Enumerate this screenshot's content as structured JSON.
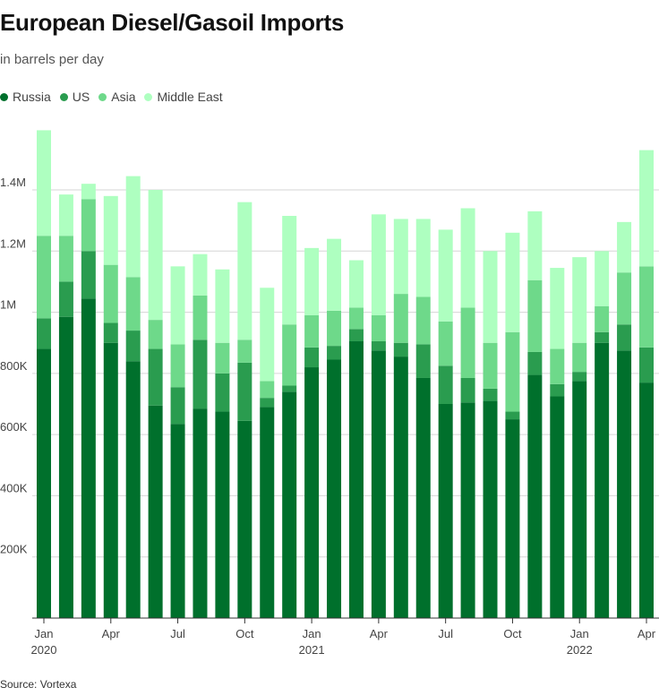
{
  "title": "European Diesel/Gasoil Imports",
  "subtitle": "in barrels per day",
  "source": "Source: Vortexa",
  "colors": {
    "Russia": "#00702c",
    "US": "#2a9c4f",
    "Asia": "#6ed98a",
    "Middle East": "#aeffc0",
    "grid": "#d6d6d6",
    "axis": "#333333"
  },
  "chart_data": {
    "type": "bar",
    "stacked": true,
    "categories": [
      "Jan 2020",
      "Feb 2020",
      "Mar 2020",
      "Apr 2020",
      "May 2020",
      "Jun 2020",
      "Jul 2020",
      "Aug 2020",
      "Sep 2020",
      "Oct 2020",
      "Nov 2020",
      "Dec 2020",
      "Jan 2021",
      "Feb 2021",
      "Mar 2021",
      "Apr 2021",
      "May 2021",
      "Jun 2021",
      "Jul 2021",
      "Aug 2021",
      "Sep 2021",
      "Oct 2021",
      "Nov 2021",
      "Dec 2021",
      "Jan 2022",
      "Feb 2022",
      "Mar 2022",
      "Apr 2022"
    ],
    "series": [
      {
        "name": "Russia",
        "values": [
          880000,
          985000,
          1045000,
          900000,
          840000,
          695000,
          635000,
          685000,
          675000,
          645000,
          690000,
          740000,
          820000,
          845000,
          905000,
          875000,
          855000,
          785000,
          700000,
          705000,
          710000,
          650000,
          795000,
          725000,
          775000,
          900000,
          875000,
          770000
        ]
      },
      {
        "name": "US",
        "values": [
          100000,
          115000,
          155000,
          65000,
          100000,
          185000,
          120000,
          225000,
          125000,
          190000,
          30000,
          20000,
          65000,
          45000,
          40000,
          30000,
          45000,
          110000,
          125000,
          80000,
          40000,
          25000,
          75000,
          40000,
          30000,
          35000,
          85000,
          115000
        ]
      },
      {
        "name": "Asia",
        "values": [
          270000,
          150000,
          170000,
          190000,
          175000,
          95000,
          140000,
          145000,
          100000,
          75000,
          55000,
          200000,
          105000,
          115000,
          70000,
          85000,
          160000,
          155000,
          145000,
          230000,
          150000,
          260000,
          235000,
          115000,
          95000,
          85000,
          170000,
          265000
        ]
      },
      {
        "name": "Middle East",
        "values": [
          345000,
          135000,
          50000,
          225000,
          330000,
          425000,
          255000,
          135000,
          240000,
          450000,
          305000,
          355000,
          220000,
          235000,
          155000,
          330000,
          245000,
          255000,
          300000,
          325000,
          300000,
          325000,
          225000,
          265000,
          280000,
          180000,
          165000,
          380000
        ]
      }
    ],
    "ylim": [
      0,
      1600000
    ],
    "yticks": [
      200000,
      400000,
      600000,
      800000,
      1000000,
      1200000,
      1400000
    ],
    "ytick_labels": [
      "200K",
      "400K",
      "600K",
      "800K",
      "1M",
      "1.2M",
      "1.4M"
    ],
    "xtick_labels": [
      {
        "index": 0,
        "label": "Jan",
        "sub": "2020"
      },
      {
        "index": 3,
        "label": "Apr",
        "sub": ""
      },
      {
        "index": 6,
        "label": "Jul",
        "sub": ""
      },
      {
        "index": 9,
        "label": "Oct",
        "sub": ""
      },
      {
        "index": 12,
        "label": "Jan",
        "sub": "2021"
      },
      {
        "index": 15,
        "label": "Apr",
        "sub": ""
      },
      {
        "index": 18,
        "label": "Jul",
        "sub": ""
      },
      {
        "index": 21,
        "label": "Oct",
        "sub": ""
      },
      {
        "index": 24,
        "label": "Jan",
        "sub": "2022"
      },
      {
        "index": 27,
        "label": "Apr",
        "sub": ""
      }
    ],
    "legend": "top-left",
    "grid": true
  }
}
